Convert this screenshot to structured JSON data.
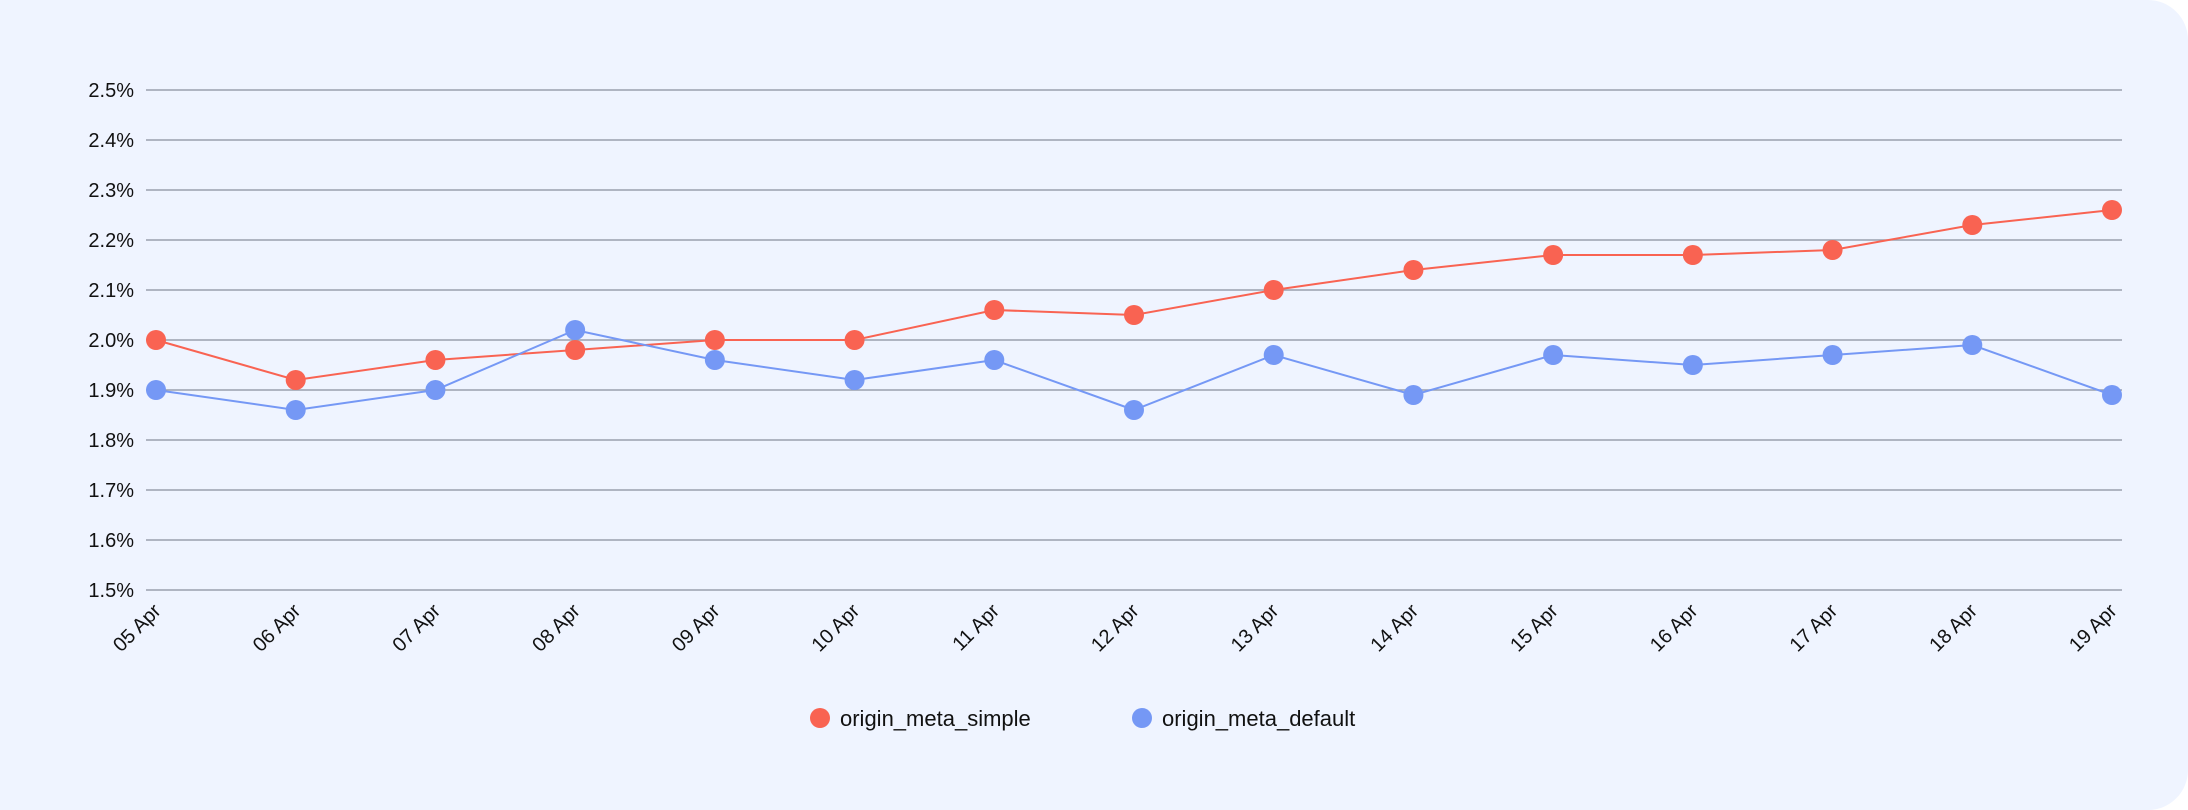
{
  "chart_data": {
    "type": "line",
    "categories": [
      "05 Apr",
      "06 Apr",
      "07 Apr",
      "08 Apr",
      "09 Apr",
      "10 Apr",
      "11 Apr",
      "12 Apr",
      "13 Apr",
      "14 Apr",
      "15 Apr",
      "16 Apr",
      "17 Apr",
      "18 Apr",
      "19 Apr"
    ],
    "ylim": [
      1.5,
      2.5
    ],
    "yticks": [
      "1.5%",
      "1.6%",
      "1.7%",
      "1.8%",
      "1.9%",
      "2.0%",
      "2.1%",
      "2.2%",
      "2.3%",
      "2.4%",
      "2.5%"
    ],
    "grid": true,
    "legend_position": "bottom-center",
    "series": [
      {
        "name": "origin_meta_simple",
        "color": "#f96352",
        "values": [
          2.0,
          1.92,
          1.96,
          1.98,
          2.0,
          2.0,
          2.06,
          2.05,
          2.1,
          2.14,
          2.17,
          2.17,
          2.18,
          2.23,
          2.26
        ]
      },
      {
        "name": "origin_meta_default",
        "color": "#7598f5",
        "values": [
          1.9,
          1.86,
          1.9,
          2.02,
          1.96,
          1.92,
          1.96,
          1.86,
          1.97,
          1.89,
          1.97,
          1.95,
          1.97,
          1.99,
          1.89
        ]
      }
    ],
    "title": "",
    "xlabel": "",
    "ylabel": ""
  }
}
